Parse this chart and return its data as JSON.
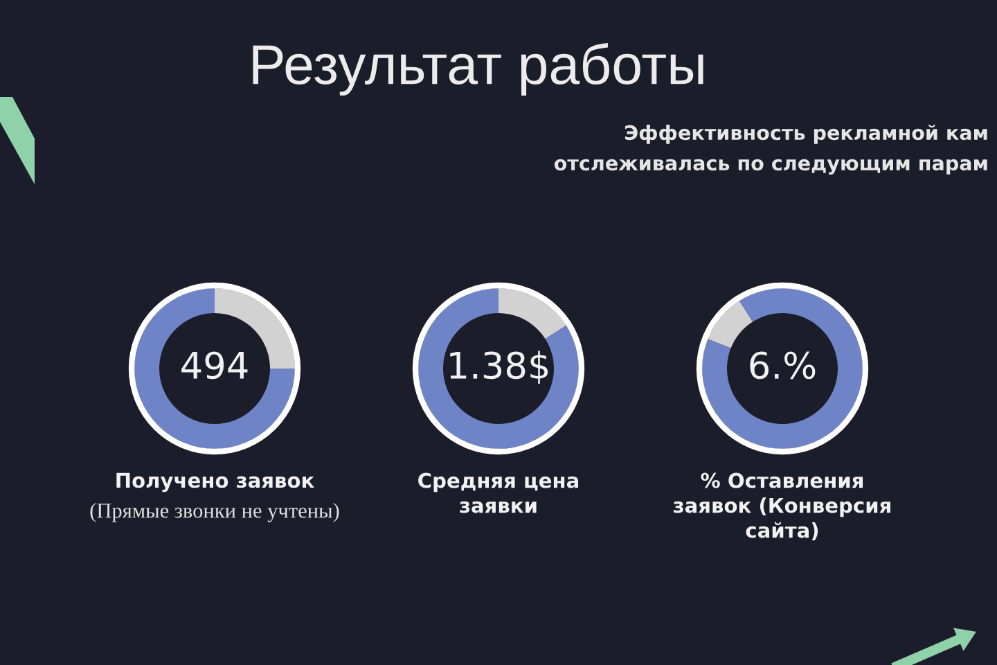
{
  "chart_data": [
    {
      "type": "other",
      "title": "Результат работы",
      "subtitle": "Эффективность рекламной кам\nотслеживалась по следующим парам"
    },
    {
      "type": "donut",
      "title": "Получено заявок",
      "categories": [
        null,
        null
      ],
      "values": [
        25,
        75
      ],
      "colors": [
        "#d2d2d2",
        "#6f84c6"
      ],
      "annotations": [
        "494",
        "(Прямые звонки не учтены)"
      ]
    },
    {
      "type": "donut",
      "title": "Средняя цена\nзаявки",
      "categories": [
        null,
        null
      ],
      "values": [
        16,
        84
      ],
      "colors": [
        "#d2d2d2",
        "#6f84c6"
      ],
      "annotations": [
        "1.38$"
      ]
    },
    {
      "type": "donut",
      "title": "% Оставления\nзаявок (Конверсия\nсайта)",
      "categories": [
        null,
        null,
        null
      ],
      "values": [
        81,
        10,
        9
      ],
      "colors": [
        "#6f84c6",
        "#d2d2d2",
        "#6f84c6"
      ],
      "annotations": [
        "6.%"
      ]
    }
  ]
}
